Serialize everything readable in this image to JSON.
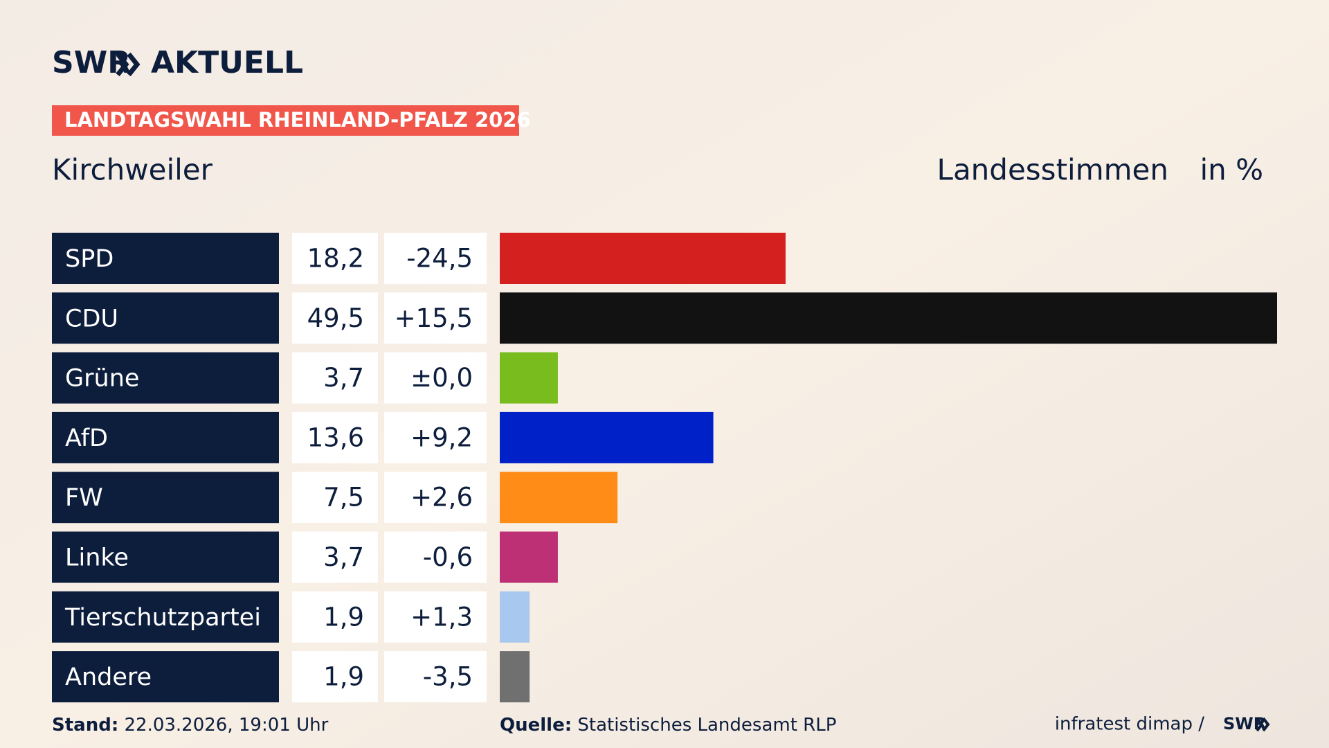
{
  "brand": {
    "logo": "SWR",
    "product": "AKTUELL"
  },
  "chart_data": {
    "type": "bar",
    "orientation": "horizontal",
    "title": "LANDTAGSWAHL RHEINLAND-PFALZ 2026",
    "subtitle": "Kirchweiler",
    "value_header": "Landesstimmen",
    "unit_header": "in %",
    "categories": [
      "SPD",
      "CDU",
      "Grüne",
      "AfD",
      "FW",
      "Linke",
      "Tierschutzpartei",
      "Andere"
    ],
    "values": [
      18.2,
      49.5,
      3.7,
      13.6,
      7.5,
      3.7,
      1.9,
      1.9
    ],
    "value_labels": [
      "18,2",
      "49,5",
      "3,7",
      "13,6",
      "7,5",
      "3,7",
      "1,9",
      "1,9"
    ],
    "changes": [
      "-24,5",
      "+15,5",
      "±0,0",
      "+9,2",
      "+2,6",
      "-0,6",
      "+1,3",
      "-3,5"
    ],
    "colors": [
      "#d52020",
      "#121212",
      "#78bc1e",
      "#0020c8",
      "#ff8c17",
      "#bd3075",
      "#a8c8f0",
      "#707070"
    ],
    "xlim": [
      0,
      49.5
    ]
  },
  "footer": {
    "stand_label": "Stand:",
    "stand": "22.03.2026, 19:01 Uhr",
    "source_label": "Quelle:",
    "source": "Statistisches Landesamt RLP",
    "credit": "infratest dimap /",
    "credit_logo": "SWR"
  }
}
